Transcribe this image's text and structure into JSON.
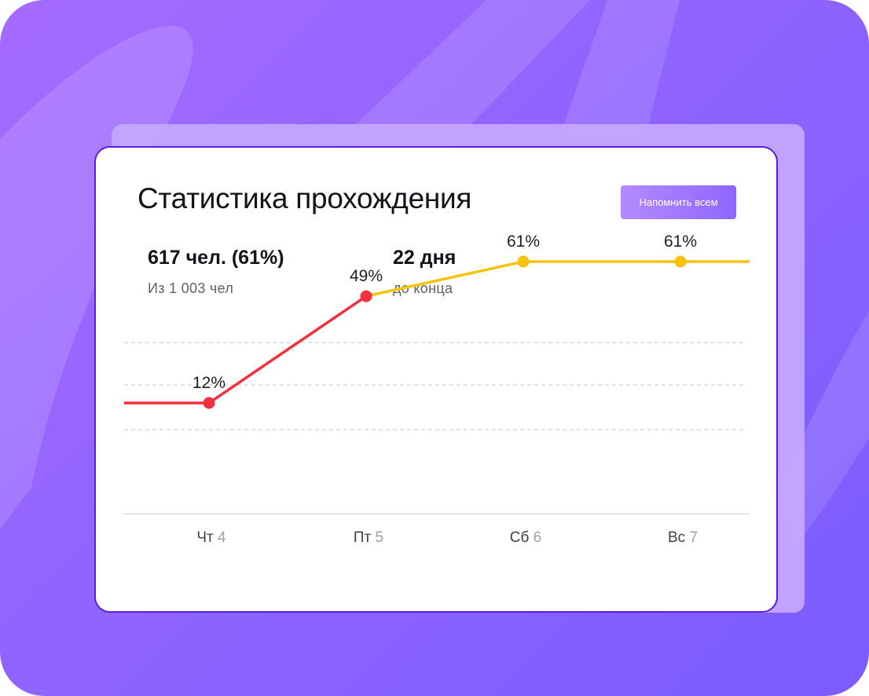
{
  "header": {
    "title": "Статистика прохождения",
    "remind_button": "Напомнить всем"
  },
  "stats": {
    "completed_value": "617 чел. (61%)",
    "completed_caption": "Из 1 003 чел",
    "days_value": "22 дня",
    "days_caption": "до конца"
  },
  "colors": {
    "accent": "#8f66ff",
    "line_actual": "#f3303f",
    "line_forecast": "#f9c20a"
  },
  "chart_data": {
    "type": "line",
    "categories": [
      {
        "weekday": "Чт",
        "day": "4"
      },
      {
        "weekday": "Пт",
        "day": "5"
      },
      {
        "weekday": "Сб",
        "day": "6"
      },
      {
        "weekday": "Вс",
        "day": "7"
      }
    ],
    "values": [
      12,
      49,
      61,
      61
    ],
    "value_labels": [
      "12%",
      "49%",
      "61%",
      "61%"
    ],
    "actual_through_index": 1,
    "ylim": [
      0,
      100
    ],
    "grid": "dashed horizontal"
  }
}
